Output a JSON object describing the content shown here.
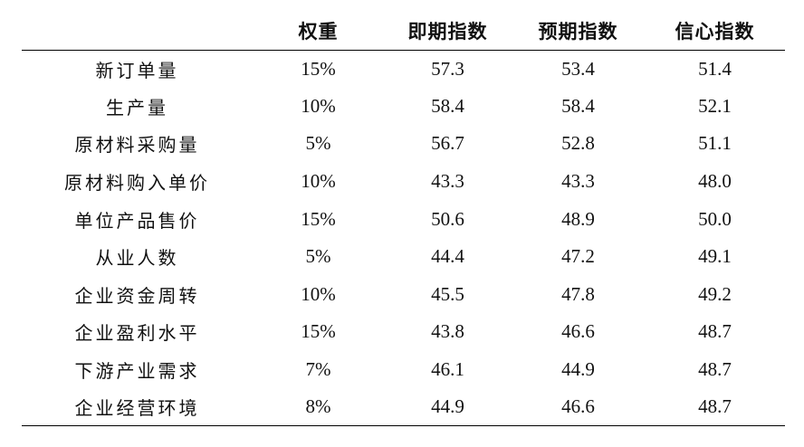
{
  "table": {
    "headers": {
      "name": "",
      "weight": "权重",
      "current": "即期指数",
      "expected": "预期指数",
      "confidence": "信心指数"
    },
    "rows": [
      {
        "name": "新订单量",
        "weight": "15%",
        "current": "57.3",
        "expected": "53.4",
        "confidence": "51.4"
      },
      {
        "name": "生产量",
        "weight": "10%",
        "current": "58.4",
        "expected": "58.4",
        "confidence": "52.1"
      },
      {
        "name": "原材料采购量",
        "weight": "5%",
        "current": "56.7",
        "expected": "52.8",
        "confidence": "51.1"
      },
      {
        "name": "原材料购入单价",
        "weight": "10%",
        "current": "43.3",
        "expected": "43.3",
        "confidence": "48.0"
      },
      {
        "name": "单位产品售价",
        "weight": "15%",
        "current": "50.6",
        "expected": "48.9",
        "confidence": "50.0"
      },
      {
        "name": "从业人数",
        "weight": "5%",
        "current": "44.4",
        "expected": "47.2",
        "confidence": "49.1"
      },
      {
        "name": "企业资金周转",
        "weight": "10%",
        "current": "45.5",
        "expected": "47.8",
        "confidence": "49.2"
      },
      {
        "name": "企业盈利水平",
        "weight": "15%",
        "current": "43.8",
        "expected": "46.6",
        "confidence": "48.7"
      },
      {
        "name": "下游产业需求",
        "weight": "7%",
        "current": "46.1",
        "expected": "44.9",
        "confidence": "48.7"
      },
      {
        "name": "企业经营环境",
        "weight": "8%",
        "current": "44.9",
        "expected": "46.6",
        "confidence": "48.7"
      }
    ]
  }
}
